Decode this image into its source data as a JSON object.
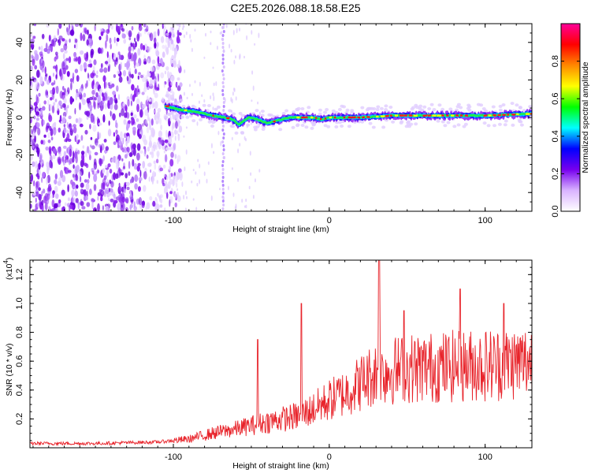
{
  "title": "C2E5.2026.088.18.58.E25",
  "chart_data": [
    {
      "type": "heatmap",
      "name": "spectrogram",
      "xlabel": "Height of straight line (km)",
      "ylabel": "Frequency (Hz)",
      "xlim": [
        -192,
        130
      ],
      "ylim": [
        -50,
        50
      ],
      "x_ticks": [
        -100,
        0,
        100
      ],
      "y_ticks": [
        -40,
        -20,
        0,
        20,
        40
      ],
      "noise_region_x": [
        -192,
        -100
      ],
      "signal_start_x": -105,
      "signal_track": {
        "x": [
          -105,
          -95,
          -85,
          -75,
          -68,
          -62,
          -58,
          -52,
          -46,
          -40,
          -35,
          -30,
          -25,
          -20,
          -15,
          -10,
          -5,
          0,
          10,
          20,
          40,
          60,
          80,
          100,
          130
        ],
        "freq": [
          6,
          4,
          3,
          1,
          0,
          -1,
          -4,
          0,
          -1,
          -3,
          -2,
          -1,
          0,
          0,
          0,
          0,
          -1,
          0,
          0,
          0,
          1,
          1,
          1,
          1,
          2
        ]
      },
      "colorbar": {
        "label": "Normalized spectral amplitude",
        "min": 0.0,
        "max": 1.0,
        "ticks": [
          "0.0",
          "0.2",
          "0.4",
          "0.6",
          "0.8"
        ],
        "colors": [
          "#ffffff",
          "#d9b3ff",
          "#7700ee",
          "#0000ff",
          "#00ffff",
          "#00ff00",
          "#ffff00",
          "#ff8800",
          "#ff0000",
          "#ff0099"
        ]
      }
    },
    {
      "type": "line",
      "name": "snr",
      "xlabel": "Height of straight line (km)",
      "ylabel": "SNR (10 * v/v)",
      "scale_label": "(x10",
      "scale_exp": "4",
      "scale_close": ")",
      "xlim": [
        -192,
        130
      ],
      "ylim": [
        0,
        1.3
      ],
      "x_ticks": [
        -100,
        0,
        100
      ],
      "y_ticks": [
        "0.2",
        "0.4",
        "0.6",
        "0.8",
        "1.0",
        "1.2"
      ],
      "color": "#e8232a",
      "spikes": [
        {
          "x": -46,
          "y": 0.75
        },
        {
          "x": -18,
          "y": 1.0
        },
        {
          "x": 32,
          "y": 1.3
        },
        {
          "x": 48,
          "y": 0.95
        },
        {
          "x": 84,
          "y": 1.1
        },
        {
          "x": 112,
          "y": 1.0
        }
      ],
      "trend": {
        "x": [
          -192,
          -150,
          -110,
          -90,
          -75,
          -60,
          -40,
          -20,
          -10,
          0,
          10,
          20,
          30,
          50,
          70,
          90,
          110,
          130
        ],
        "y": [
          0.03,
          0.03,
          0.04,
          0.06,
          0.1,
          0.13,
          0.18,
          0.22,
          0.27,
          0.33,
          0.38,
          0.45,
          0.52,
          0.55,
          0.56,
          0.57,
          0.58,
          0.6
        ]
      }
    }
  ]
}
